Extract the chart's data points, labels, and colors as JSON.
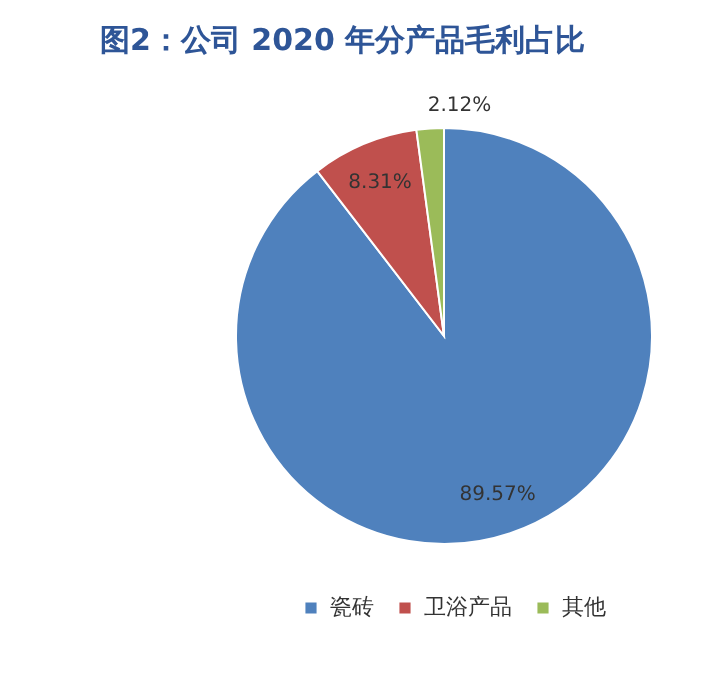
{
  "chart_data": {
    "type": "pie",
    "title": "图2：公司 2020 年分产品毛利占比",
    "categories": [
      "瓷砖",
      "卫浴产品",
      "其他"
    ],
    "values": [
      89.57,
      8.31,
      2.12
    ],
    "colors": [
      "#4f81bd",
      "#c0504d",
      "#9bbb59"
    ],
    "value_labels": [
      "89.57%",
      "8.31%",
      "2.12%"
    ],
    "legend": "bottom"
  }
}
